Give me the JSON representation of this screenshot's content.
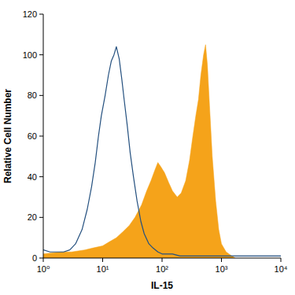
{
  "chart_data": {
    "type": "line",
    "x_label": "IL-15",
    "y_label": "Relative Cell Number",
    "log": "x",
    "xlim": [
      1,
      10000
    ],
    "ylim": [
      0,
      120
    ],
    "xticks": [
      {
        "value": 1,
        "label": "10⁰"
      },
      {
        "value": 10,
        "label": "10¹"
      },
      {
        "value": 100,
        "label": "10²"
      },
      {
        "value": 1000,
        "label": "10³"
      },
      {
        "value": 10000,
        "label": "10⁴"
      }
    ],
    "yticks": [
      0,
      20,
      40,
      60,
      80,
      100,
      120
    ],
    "series": [
      {
        "type": "line",
        "color": "#24507f",
        "x": [
          1,
          1.3,
          1.7,
          2.2,
          2.8,
          3.5,
          4.5,
          5.5,
          6.5,
          7.5,
          8.5,
          9.5,
          11,
          12.5,
          14,
          15.5,
          17,
          19,
          21,
          23,
          26,
          29,
          33,
          38,
          44,
          50,
          60,
          70,
          85,
          100,
          150,
          200,
          300,
          500,
          1000,
          2000,
          10000
        ],
        "values": [
          4,
          3,
          3,
          3,
          4,
          7,
          14,
          24,
          35,
          47,
          60,
          70,
          80,
          90,
          97,
          100,
          104,
          98,
          88,
          78,
          65,
          52,
          40,
          28,
          18,
          12,
          7,
          5,
          3,
          2,
          2,
          1,
          1,
          1,
          1,
          1,
          1
        ]
      },
      {
        "type": "area",
        "color": "#f5a31a",
        "x": [
          1,
          2,
          3,
          5,
          7,
          10,
          13,
          17,
          22,
          28,
          35,
          45,
          55,
          65,
          75,
          85,
          95,
          110,
          130,
          150,
          180,
          210,
          250,
          290,
          330,
          370,
          410,
          450,
          500,
          540,
          580,
          630,
          700,
          800,
          900,
          1000,
          1200,
          1500,
          1700
        ],
        "values": [
          2,
          3,
          3,
          4,
          5,
          6,
          8,
          10,
          13,
          16,
          20,
          26,
          33,
          38,
          43,
          47,
          45,
          42,
          37,
          33,
          30,
          32,
          38,
          48,
          60,
          70,
          78,
          90,
          100,
          105,
          95,
          75,
          50,
          28,
          14,
          7,
          3,
          1,
          0
        ]
      }
    ]
  }
}
